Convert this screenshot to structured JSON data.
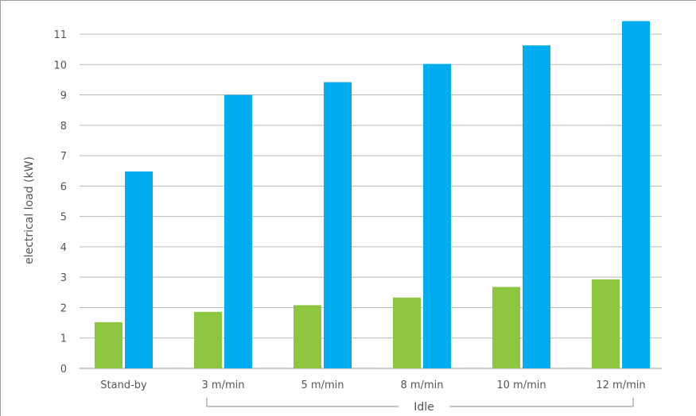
{
  "chart_data": {
    "type": "bar",
    "title": "",
    "ylabel": "electrical load (kW)",
    "xlabel": "",
    "categories": [
      "Stand-by",
      "3 m/min",
      "5 m/min",
      "8 m/min",
      "10 m/min",
      "12 m/min"
    ],
    "series": [
      {
        "values": [
          1.52,
          1.86,
          2.08,
          2.33,
          2.68,
          2.93
        ]
      },
      {
        "values": [
          6.48,
          9.0,
          9.42,
          10.02,
          10.63,
          11.43
        ]
      }
    ],
    "yticks": [
      "0",
      "1",
      "2",
      "3",
      "4",
      "5",
      "6",
      "7",
      "8",
      "9",
      "10",
      "11"
    ],
    "ylim": [
      0,
      11.5
    ],
    "grid": true,
    "group_label": "Idle",
    "colors": {
      "series_0": "#8dc63f",
      "series_1": "#00aeef",
      "grid": "#b7b7b7",
      "text": "#555555",
      "bracket": "#888888"
    }
  }
}
